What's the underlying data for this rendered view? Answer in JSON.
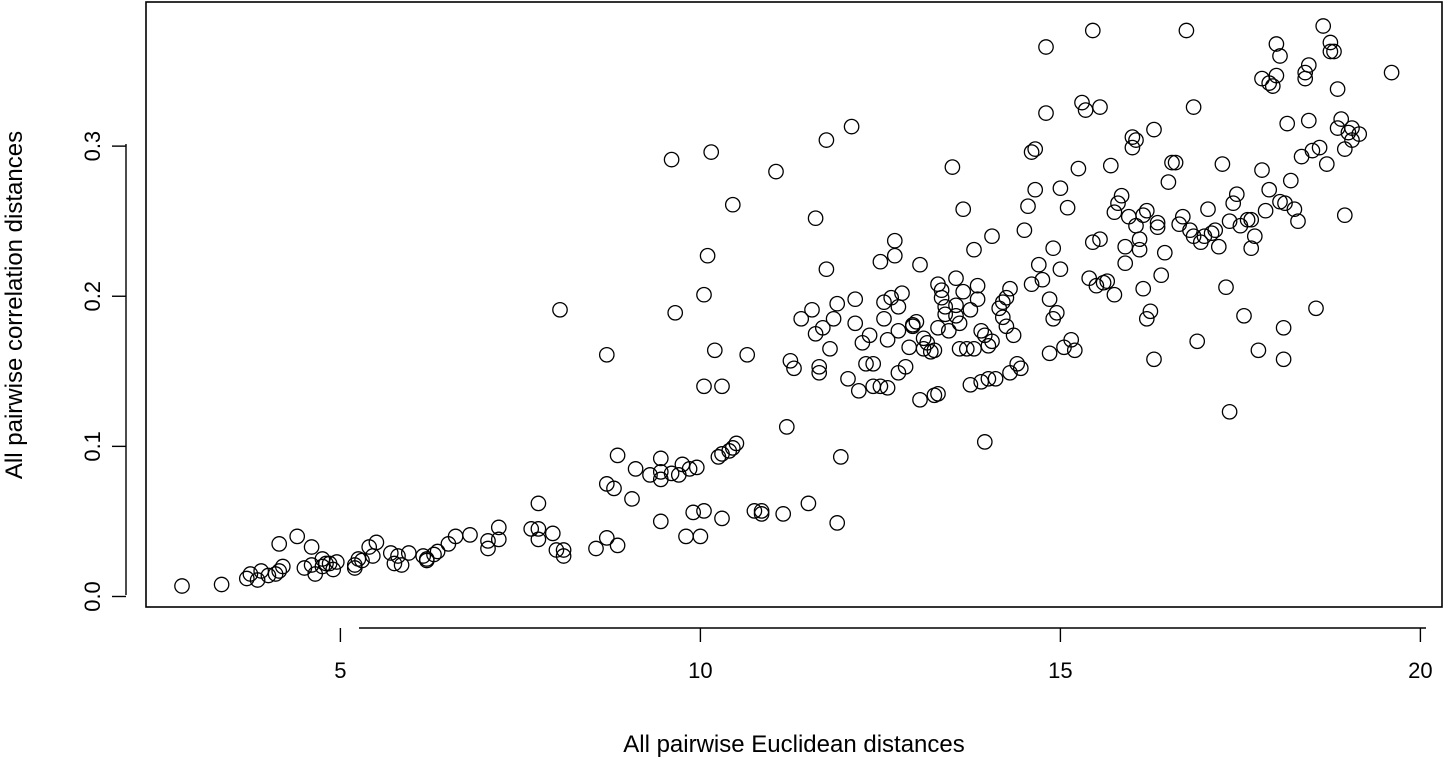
{
  "chart_data": {
    "type": "scatter",
    "title": "",
    "xlabel": "All pairwise Euclidean distances",
    "ylabel": "All pairwise correlation distances",
    "xlim": [
      2.3,
      20.3
    ],
    "ylim": [
      -0.007,
      0.396
    ],
    "xticks": [
      5,
      10,
      15,
      20
    ],
    "xtick_labels": [
      "5",
      "10",
      "15",
      "20"
    ],
    "yticks": [
      0.0,
      0.1,
      0.2,
      0.3
    ],
    "ytick_labels": [
      "0.0",
      "0.1",
      "0.2",
      "0.3"
    ],
    "grid": false,
    "legend": "none",
    "marker": "open-circle",
    "color": "#000000",
    "points": [
      [
        2.8,
        0.007
      ],
      [
        3.35,
        0.008
      ],
      [
        3.7,
        0.012
      ],
      [
        3.75,
        0.015
      ],
      [
        3.85,
        0.011
      ],
      [
        3.9,
        0.017
      ],
      [
        4.0,
        0.014
      ],
      [
        4.1,
        0.015
      ],
      [
        4.15,
        0.017
      ],
      [
        4.2,
        0.02
      ],
      [
        4.15,
        0.035
      ],
      [
        4.4,
        0.04
      ],
      [
        4.6,
        0.033
      ],
      [
        4.5,
        0.019
      ],
      [
        4.6,
        0.021
      ],
      [
        4.65,
        0.015
      ],
      [
        4.75,
        0.02
      ],
      [
        4.8,
        0.022
      ],
      [
        4.75,
        0.025
      ],
      [
        4.9,
        0.018
      ],
      [
        4.85,
        0.022
      ],
      [
        4.95,
        0.023
      ],
      [
        5.2,
        0.021
      ],
      [
        5.2,
        0.019
      ],
      [
        5.25,
        0.025
      ],
      [
        5.3,
        0.024
      ],
      [
        5.4,
        0.033
      ],
      [
        5.5,
        0.036
      ],
      [
        5.45,
        0.027
      ],
      [
        5.7,
        0.029
      ],
      [
        5.75,
        0.022
      ],
      [
        5.8,
        0.027
      ],
      [
        5.85,
        0.021
      ],
      [
        5.95,
        0.029
      ],
      [
        6.15,
        0.027
      ],
      [
        6.2,
        0.025
      ],
      [
        6.2,
        0.024
      ],
      [
        6.3,
        0.028
      ],
      [
        6.35,
        0.03
      ],
      [
        6.5,
        0.035
      ],
      [
        6.6,
        0.04
      ],
      [
        6.8,
        0.041
      ],
      [
        7.05,
        0.037
      ],
      [
        7.05,
        0.032
      ],
      [
        7.2,
        0.046
      ],
      [
        7.2,
        0.038
      ],
      [
        7.65,
        0.045
      ],
      [
        7.75,
        0.062
      ],
      [
        7.75,
        0.045
      ],
      [
        7.75,
        0.038
      ],
      [
        7.95,
        0.042
      ],
      [
        8.0,
        0.031
      ],
      [
        8.1,
        0.031
      ],
      [
        8.1,
        0.027
      ],
      [
        8.05,
        0.191
      ],
      [
        8.55,
        0.032
      ],
      [
        8.7,
        0.039
      ],
      [
        8.7,
        0.075
      ],
      [
        8.8,
        0.072
      ],
      [
        8.85,
        0.094
      ],
      [
        8.85,
        0.034
      ],
      [
        8.7,
        0.161
      ],
      [
        9.05,
        0.065
      ],
      [
        9.1,
        0.085
      ],
      [
        9.3,
        0.081
      ],
      [
        9.45,
        0.078
      ],
      [
        9.45,
        0.083
      ],
      [
        9.45,
        0.092
      ],
      [
        9.45,
        0.05
      ],
      [
        9.6,
        0.082
      ],
      [
        9.7,
        0.081
      ],
      [
        9.75,
        0.088
      ],
      [
        9.8,
        0.04
      ],
      [
        9.85,
        0.085
      ],
      [
        9.9,
        0.056
      ],
      [
        9.95,
        0.086
      ],
      [
        10.0,
        0.04
      ],
      [
        10.05,
        0.057
      ],
      [
        9.6,
        0.291
      ],
      [
        9.65,
        0.189
      ],
      [
        10.05,
        0.14
      ],
      [
        10.05,
        0.201
      ],
      [
        10.1,
        0.227
      ],
      [
        10.15,
        0.296
      ],
      [
        10.2,
        0.164
      ],
      [
        10.25,
        0.093
      ],
      [
        10.3,
        0.095
      ],
      [
        10.3,
        0.052
      ],
      [
        10.3,
        0.14
      ],
      [
        10.4,
        0.097
      ],
      [
        10.45,
        0.099
      ],
      [
        10.45,
        0.261
      ],
      [
        10.5,
        0.102
      ],
      [
        10.65,
        0.161
      ],
      [
        10.75,
        0.057
      ],
      [
        10.85,
        0.057
      ],
      [
        10.85,
        0.055
      ],
      [
        11.05,
        0.283
      ],
      [
        11.15,
        0.055
      ],
      [
        11.2,
        0.113
      ],
      [
        11.25,
        0.157
      ],
      [
        11.3,
        0.152
      ],
      [
        11.4,
        0.185
      ],
      [
        11.5,
        0.062
      ],
      [
        11.55,
        0.191
      ],
      [
        11.6,
        0.252
      ],
      [
        11.6,
        0.175
      ],
      [
        11.65,
        0.149
      ],
      [
        11.65,
        0.153
      ],
      [
        11.7,
        0.179
      ],
      [
        11.75,
        0.304
      ],
      [
        11.75,
        0.218
      ],
      [
        11.8,
        0.165
      ],
      [
        11.85,
        0.185
      ],
      [
        11.9,
        0.195
      ],
      [
        11.95,
        0.093
      ],
      [
        11.9,
        0.049
      ],
      [
        12.05,
        0.145
      ],
      [
        12.1,
        0.313
      ],
      [
        12.15,
        0.182
      ],
      [
        12.15,
        0.198
      ],
      [
        12.2,
        0.137
      ],
      [
        12.25,
        0.169
      ],
      [
        12.3,
        0.155
      ],
      [
        12.35,
        0.174
      ],
      [
        12.4,
        0.155
      ],
      [
        12.4,
        0.14
      ],
      [
        12.5,
        0.223
      ],
      [
        12.5,
        0.14
      ],
      [
        12.55,
        0.185
      ],
      [
        12.55,
        0.196
      ],
      [
        12.6,
        0.139
      ],
      [
        12.6,
        0.171
      ],
      [
        12.65,
        0.199
      ],
      [
        12.7,
        0.227
      ],
      [
        12.7,
        0.237
      ],
      [
        12.75,
        0.193
      ],
      [
        12.75,
        0.177
      ],
      [
        12.75,
        0.149
      ],
      [
        12.8,
        0.202
      ],
      [
        12.85,
        0.153
      ],
      [
        12.9,
        0.166
      ],
      [
        12.95,
        0.18
      ],
      [
        12.95,
        0.181
      ],
      [
        13.0,
        0.183
      ],
      [
        13.05,
        0.221
      ],
      [
        13.05,
        0.131
      ],
      [
        13.1,
        0.165
      ],
      [
        13.1,
        0.172
      ],
      [
        13.15,
        0.169
      ],
      [
        13.2,
        0.163
      ],
      [
        13.25,
        0.164
      ],
      [
        13.25,
        0.134
      ],
      [
        13.3,
        0.135
      ],
      [
        13.3,
        0.179
      ],
      [
        13.3,
        0.208
      ],
      [
        13.35,
        0.204
      ],
      [
        13.35,
        0.199
      ],
      [
        13.4,
        0.193
      ],
      [
        13.4,
        0.188
      ],
      [
        13.45,
        0.177
      ],
      [
        13.5,
        0.286
      ],
      [
        13.55,
        0.194
      ],
      [
        13.55,
        0.187
      ],
      [
        13.55,
        0.212
      ],
      [
        13.6,
        0.165
      ],
      [
        13.6,
        0.182
      ],
      [
        13.65,
        0.258
      ],
      [
        13.65,
        0.203
      ],
      [
        13.7,
        0.165
      ],
      [
        13.75,
        0.141
      ],
      [
        13.75,
        0.191
      ],
      [
        13.8,
        0.165
      ],
      [
        13.8,
        0.231
      ],
      [
        13.85,
        0.198
      ],
      [
        13.85,
        0.207
      ],
      [
        13.9,
        0.177
      ],
      [
        13.9,
        0.143
      ],
      [
        13.95,
        0.103
      ],
      [
        13.95,
        0.174
      ],
      [
        14.0,
        0.167
      ],
      [
        14.0,
        0.145
      ],
      [
        14.05,
        0.24
      ],
      [
        14.05,
        0.17
      ],
      [
        14.1,
        0.145
      ],
      [
        14.15,
        0.192
      ],
      [
        14.2,
        0.186
      ],
      [
        14.2,
        0.196
      ],
      [
        14.25,
        0.199
      ],
      [
        14.25,
        0.18
      ],
      [
        14.3,
        0.205
      ],
      [
        14.3,
        0.149
      ],
      [
        14.35,
        0.174
      ],
      [
        14.4,
        0.155
      ],
      [
        14.45,
        0.152
      ],
      [
        14.5,
        0.244
      ],
      [
        14.55,
        0.26
      ],
      [
        14.6,
        0.208
      ],
      [
        14.6,
        0.296
      ],
      [
        14.65,
        0.298
      ],
      [
        14.65,
        0.271
      ],
      [
        14.7,
        0.221
      ],
      [
        14.75,
        0.211
      ],
      [
        14.8,
        0.322
      ],
      [
        14.85,
        0.198
      ],
      [
        14.85,
        0.162
      ],
      [
        14.9,
        0.185
      ],
      [
        14.9,
        0.232
      ],
      [
        14.95,
        0.189
      ],
      [
        15.0,
        0.272
      ],
      [
        15.0,
        0.218
      ],
      [
        15.05,
        0.166
      ],
      [
        15.1,
        0.259
      ],
      [
        15.15,
        0.171
      ],
      [
        15.2,
        0.164
      ],
      [
        15.25,
        0.285
      ],
      [
        15.3,
        0.329
      ],
      [
        15.35,
        0.324
      ],
      [
        15.4,
        0.212
      ],
      [
        15.45,
        0.236
      ],
      [
        15.5,
        0.207
      ],
      [
        15.55,
        0.238
      ],
      [
        15.6,
        0.209
      ],
      [
        15.65,
        0.21
      ],
      [
        15.7,
        0.287
      ],
      [
        15.75,
        0.201
      ],
      [
        15.75,
        0.256
      ],
      [
        15.8,
        0.262
      ],
      [
        15.85,
        0.267
      ],
      [
        15.9,
        0.222
      ],
      [
        15.9,
        0.233
      ],
      [
        15.95,
        0.253
      ],
      [
        16.0,
        0.306
      ],
      [
        16.0,
        0.299
      ],
      [
        16.05,
        0.304
      ],
      [
        16.05,
        0.247
      ],
      [
        16.1,
        0.238
      ],
      [
        16.1,
        0.231
      ],
      [
        16.15,
        0.205
      ],
      [
        16.15,
        0.254
      ],
      [
        16.2,
        0.185
      ],
      [
        16.2,
        0.257
      ],
      [
        16.25,
        0.19
      ],
      [
        16.3,
        0.311
      ],
      [
        16.3,
        0.158
      ],
      [
        16.35,
        0.246
      ],
      [
        16.35,
        0.249
      ],
      [
        16.4,
        0.214
      ],
      [
        16.45,
        0.229
      ],
      [
        16.5,
        0.276
      ],
      [
        16.55,
        0.289
      ],
      [
        16.6,
        0.289
      ],
      [
        16.65,
        0.248
      ],
      [
        16.7,
        0.253
      ],
      [
        16.75,
        0.377
      ],
      [
        16.8,
        0.244
      ],
      [
        16.85,
        0.326
      ],
      [
        16.85,
        0.24
      ],
      [
        16.9,
        0.17
      ],
      [
        16.95,
        0.236
      ],
      [
        17.0,
        0.24
      ],
      [
        17.05,
        0.258
      ],
      [
        17.1,
        0.242
      ],
      [
        17.15,
        0.244
      ],
      [
        17.2,
        0.233
      ],
      [
        17.25,
        0.288
      ],
      [
        17.3,
        0.206
      ],
      [
        17.35,
        0.25
      ],
      [
        17.35,
        0.123
      ],
      [
        17.4,
        0.262
      ],
      [
        17.45,
        0.268
      ],
      [
        17.5,
        0.247
      ],
      [
        17.55,
        0.187
      ],
      [
        17.6,
        0.251
      ],
      [
        17.65,
        0.232
      ],
      [
        17.7,
        0.24
      ],
      [
        17.75,
        0.164
      ],
      [
        17.8,
        0.284
      ],
      [
        17.85,
        0.257
      ],
      [
        17.9,
        0.271
      ],
      [
        17.95,
        0.34
      ],
      [
        18.0,
        0.347
      ],
      [
        18.05,
        0.263
      ],
      [
        18.1,
        0.179
      ],
      [
        18.15,
        0.315
      ],
      [
        18.2,
        0.277
      ],
      [
        18.25,
        0.258
      ],
      [
        18.3,
        0.25
      ],
      [
        18.35,
        0.293
      ],
      [
        18.4,
        0.345
      ],
      [
        18.45,
        0.317
      ],
      [
        18.5,
        0.297
      ],
      [
        18.55,
        0.192
      ],
      [
        18.6,
        0.299
      ],
      [
        18.65,
        0.38
      ],
      [
        18.7,
        0.288
      ],
      [
        18.75,
        0.369
      ],
      [
        18.8,
        0.363
      ],
      [
        18.85,
        0.338
      ],
      [
        18.9,
        0.318
      ],
      [
        18.95,
        0.254
      ],
      [
        19.0,
        0.309
      ],
      [
        19.05,
        0.304
      ],
      [
        17.65,
        0.251
      ],
      [
        17.8,
        0.345
      ],
      [
        17.9,
        0.342
      ],
      [
        18.0,
        0.368
      ],
      [
        18.05,
        0.36
      ],
      [
        18.1,
        0.158
      ],
      [
        18.12,
        0.262
      ],
      [
        18.4,
        0.349
      ],
      [
        18.45,
        0.354
      ],
      [
        18.75,
        0.363
      ],
      [
        18.85,
        0.312
      ],
      [
        18.95,
        0.298
      ],
      [
        19.05,
        0.312
      ],
      [
        19.15,
        0.308
      ],
      [
        19.6,
        0.349
      ],
      [
        14.8,
        0.366
      ],
      [
        15.45,
        0.377
      ],
      [
        15.55,
        0.326
      ]
    ]
  }
}
